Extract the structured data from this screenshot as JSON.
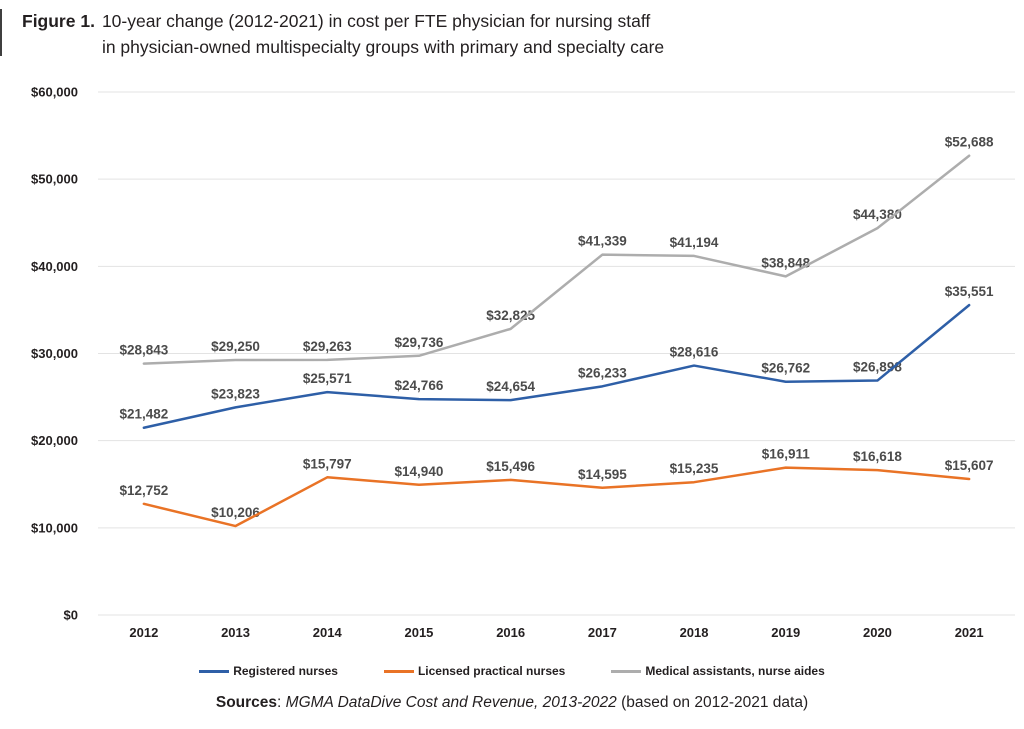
{
  "figure": {
    "label": "Figure 1.",
    "title_line1": "10-year change (2012-2021) in cost per FTE physician for nursing staff",
    "title_line2": "in physician-owned multispecialty groups with primary and specialty care"
  },
  "chart_data": {
    "type": "line",
    "categories": [
      "2012",
      "2013",
      "2014",
      "2015",
      "2016",
      "2017",
      "2018",
      "2019",
      "2020",
      "2021"
    ],
    "series": [
      {
        "name": "Registered nurses",
        "color": "#2E5FA7",
        "values": [
          21482,
          23823,
          25571,
          24766,
          24654,
          26233,
          28616,
          26762,
          26898,
          35551
        ],
        "labels": [
          "$21,482",
          "$23,823",
          "$25,571",
          "$24,766",
          "$24,654",
          "$26,233",
          "$28,616",
          "$26,762",
          "$26,898",
          "$35,551"
        ]
      },
      {
        "name": "Licensed practical nurses",
        "color": "#E97326",
        "values": [
          12752,
          10206,
          15797,
          14940,
          15496,
          14595,
          15235,
          16911,
          16618,
          15607
        ],
        "labels": [
          "$12,752",
          "$10,206",
          "$15,797",
          "$14,940",
          "$15,496",
          "$14,595",
          "$15,235",
          "$16,911",
          "$16,618",
          "$15,607"
        ]
      },
      {
        "name": "Medical assistants, nurse aides",
        "color": "#ADADAD",
        "values": [
          28843,
          29250,
          29263,
          29736,
          32825,
          41339,
          41194,
          38848,
          44380,
          52688
        ],
        "labels": [
          "$28,843",
          "$29,250",
          "$29,263",
          "$29,736",
          "$32,825",
          "$41,339",
          "$41,194",
          "$38,848",
          "$44,380",
          "$52,688"
        ]
      }
    ],
    "ylim": [
      0,
      60000
    ],
    "ytick_interval": 10000,
    "ytick_labels": [
      "$0",
      "$10,000",
      "$20,000",
      "$30,000",
      "$40,000",
      "$50,000",
      "$60,000"
    ],
    "grid": true,
    "legend_position": "bottom",
    "colors": {
      "grid": "#E3E3E3",
      "axis_text": "#231F20",
      "data_label": "#4B4B4B"
    }
  },
  "source": {
    "prefix": "Sources",
    "separator": ": ",
    "citation": "MGMA DataDive Cost and Revenue, 2013-2022",
    "suffix": " (based on 2012-2021 data)"
  }
}
